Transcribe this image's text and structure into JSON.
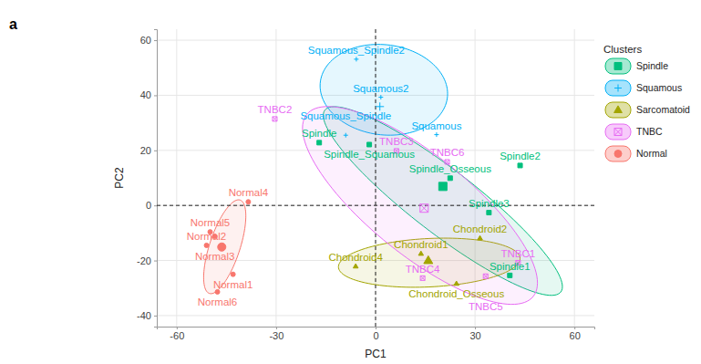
{
  "chart_data": {
    "type": "scatter",
    "panel_label": "a",
    "x_label": "PC1",
    "y_label": "PC2",
    "xlim": [
      -66,
      66
    ],
    "ylim": [
      -44,
      64
    ],
    "xticks": [
      -60,
      -30,
      0,
      30,
      60
    ],
    "yticks": [
      -40,
      -20,
      0,
      20,
      40,
      60
    ],
    "grid": true,
    "reference_lines": {
      "x": 0,
      "y": 0
    },
    "legend_title": "Clusters",
    "legend": "right",
    "series": [
      {
        "name": "Spindle",
        "color": "#00BF7D",
        "marker": "square",
        "labels": [
          "Spindle2",
          "Spindle3",
          "Spindle_Osseous",
          "Spindle1",
          "Spindle",
          "Spindle_Squamous"
        ],
        "x": [
          43.6,
          34.2,
          22.5,
          40.5,
          -17,
          -1.9
        ],
        "y": [
          14.5,
          -2.6,
          9.9,
          -25.4,
          22.8,
          22.1
        ],
        "centroid": [
          20.3,
          6.9
        ],
        "ellipse": {
          "center": [
            20.3,
            1.6
          ],
          "axis1": [
            35.6,
            -33
          ],
          "axis2": [
            5.8,
            9.2
          ]
        }
      },
      {
        "name": "Squamous",
        "color": "#00B0F6",
        "marker": "plus",
        "labels": [
          "Squamous_Spindle2",
          "Squamous2",
          "Squamous_Spindle",
          "Squamous"
        ],
        "x": [
          -5.8,
          1.6,
          -9,
          18.4
        ],
        "y": [
          53.1,
          39.3,
          25.5,
          25.7
        ],
        "centroid": [
          1.3,
          35.9
        ],
        "ellipse": {
          "center": [
            2.5,
            42
          ],
          "axis1": [
            19,
            -4
          ],
          "axis2": [
            3,
            16
          ]
        }
      },
      {
        "name": "Sarcomatoid",
        "color": "#A3A500",
        "marker": "triangle",
        "labels": [
          "Chondroid1",
          "Chondroid2",
          "Chondroid4",
          "Chondroid_Osseous"
        ],
        "x": [
          13.7,
          31.5,
          -6,
          24.4
        ],
        "y": [
          -17.5,
          -11.9,
          -22.1,
          -28.4
        ],
        "centroid": [
          15.9,
          -20
        ],
        "ellipse": {
          "center": [
            16.2,
            -20.8
          ],
          "axis1": [
            27.4,
            1.5
          ],
          "axis2": [
            0,
            8.8
          ]
        }
      },
      {
        "name": "TNBC",
        "color": "#E76BF3",
        "marker": "square-x",
        "labels": [
          "TNBC2",
          "TNBC3",
          "TNBC6",
          "TNBC1",
          "TNBC4",
          "TNBC5"
        ],
        "x": [
          -30.4,
          6.3,
          21.6,
          43,
          14.2,
          33.2
        ],
        "y": [
          31.4,
          19.8,
          15.8,
          -20.8,
          -26.4,
          -25.7
        ],
        "centroid": [
          14.65,
          -1
        ],
        "ellipse": {
          "center": [
            13.4,
            0
          ],
          "axis1": [
            34.2,
            -33
          ],
          "axis2": [
            9.3,
            14.2
          ]
        }
      },
      {
        "name": "Normal",
        "color": "#F8766D",
        "marker": "circle",
        "labels": [
          "Normal4",
          "Normal5",
          "Normal2",
          "Normal3",
          "Normal1",
          "Normal6"
        ],
        "x": [
          -38.4,
          -49.9,
          -51,
          -48.5,
          -43,
          -47.7
        ],
        "y": [
          1.3,
          -9.6,
          -14.5,
          -11.2,
          -25,
          -31.4
        ],
        "centroid": [
          -46.4,
          -15.1
        ],
        "ellipse": {
          "center": [
            -45.5,
            -15
          ],
          "axis1": [
            4.5,
            17
          ],
          "axis2": [
            -4.5,
            1.2
          ]
        }
      }
    ]
  }
}
